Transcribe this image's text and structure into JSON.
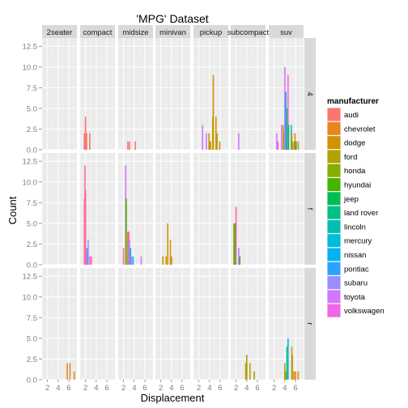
{
  "chart_data": {
    "type": "bar",
    "title": "'MPG' Dataset",
    "xlabel": "Displacement",
    "ylabel": "Count",
    "ylim": [
      0,
      13.5
    ],
    "y_ticks": [
      "0.0",
      "2.5",
      "5.0",
      "7.5",
      "10.0",
      "12.5"
    ],
    "xlim": [
      1,
      7.5
    ],
    "x_ticks": [
      "2",
      "4",
      "6"
    ],
    "col_facets": [
      "2seater",
      "compact",
      "midsize",
      "minivan",
      "pickup",
      "subcompact",
      "suv"
    ],
    "row_facets": [
      "4",
      "f",
      "r"
    ],
    "legend": {
      "title": "manufacturer",
      "position": "right",
      "entries": [
        {
          "name": "audi",
          "color": "#F8766D"
        },
        {
          "name": "chevrolet",
          "color": "#E7861B"
        },
        {
          "name": "dodge",
          "color": "#D09400"
        },
        {
          "name": "ford",
          "color": "#B2A100"
        },
        {
          "name": "honda",
          "color": "#89AC00"
        },
        {
          "name": "hyundai",
          "color": "#45B500"
        },
        {
          "name": "jeep",
          "color": "#00BC51"
        },
        {
          "name": "land rover",
          "color": "#00C087"
        },
        {
          "name": "lincoln",
          "color": "#00C0B2"
        },
        {
          "name": "mercury",
          "color": "#00BCD6"
        },
        {
          "name": "nissan",
          "color": "#00B3F2"
        },
        {
          "name": "pontiac",
          "color": "#29A3FF"
        },
        {
          "name": "subaru",
          "color": "#9C8DFF"
        },
        {
          "name": "toyota",
          "color": "#D277FF"
        },
        {
          "name": "volkswagen",
          "color": "#F166E8"
        }
      ]
    },
    "extra_colors": {
      "toyota_bar": "#FF61C9",
      "volkswagen_bar": "#FF65AC"
    },
    "grid": true,
    "background": "#EBEBEB",
    "bars": [
      {
        "col": 1,
        "row": 0,
        "x": 1.8,
        "y": 2,
        "color": "#F8766D"
      },
      {
        "col": 1,
        "row": 0,
        "x": 2.0,
        "y": 4,
        "color": "#F8766D"
      },
      {
        "col": 1,
        "row": 0,
        "x": 2.2,
        "y": 2,
        "color": "#F8766D"
      },
      {
        "col": 1,
        "row": 0,
        "x": 2.8,
        "y": 2,
        "color": "#F8766D"
      },
      {
        "col": 2,
        "row": 0,
        "x": 2.8,
        "y": 1,
        "color": "#F8766D"
      },
      {
        "col": 2,
        "row": 0,
        "x": 3.1,
        "y": 1,
        "color": "#F8766D"
      },
      {
        "col": 2,
        "row": 0,
        "x": 4.2,
        "y": 1,
        "color": "#F8766D"
      },
      {
        "col": 4,
        "row": 0,
        "x": 2.7,
        "y": 3,
        "color": "#D277FF"
      },
      {
        "col": 4,
        "row": 0,
        "x": 3.4,
        "y": 2,
        "color": "#D277FF"
      },
      {
        "col": 4,
        "row": 0,
        "x": 3.9,
        "y": 2,
        "color": "#D09400"
      },
      {
        "col": 4,
        "row": 0,
        "x": 4.0,
        "y": 1,
        "color": "#B2A100"
      },
      {
        "col": 4,
        "row": 0,
        "x": 4.2,
        "y": 1,
        "color": "#E7861B"
      },
      {
        "col": 4,
        "row": 0,
        "x": 4.6,
        "y": 4,
        "color": "#B2A100"
      },
      {
        "col": 4,
        "row": 0,
        "x": 4.7,
        "y": 9,
        "color": "#D09400"
      },
      {
        "col": 4,
        "row": 0,
        "x": 5.2,
        "y": 4,
        "color": "#D09400"
      },
      {
        "col": 4,
        "row": 0,
        "x": 5.4,
        "y": 2,
        "color": "#B2A100"
      },
      {
        "col": 4,
        "row": 0,
        "x": 5.9,
        "y": 1,
        "color": "#D09400"
      },
      {
        "col": 5,
        "row": 0,
        "x": 2.5,
        "y": 2,
        "color": "#D277FF"
      },
      {
        "col": 6,
        "row": 0,
        "x": 2.5,
        "y": 2,
        "color": "#D277FF"
      },
      {
        "col": 6,
        "row": 0,
        "x": 2.7,
        "y": 1,
        "color": "#FF61C9"
      },
      {
        "col": 6,
        "row": 0,
        "x": 3.4,
        "y": 3,
        "color": "#D277FF"
      },
      {
        "col": 6,
        "row": 0,
        "x": 3.7,
        "y": 3,
        "color": "#D09400"
      },
      {
        "col": 6,
        "row": 0,
        "x": 3.9,
        "y": 2,
        "color": "#B2A100"
      },
      {
        "col": 6,
        "row": 0,
        "x": 4.0,
        "y": 10,
        "color": "#D277FF"
      },
      {
        "col": 6,
        "row": 0,
        "x": 4.2,
        "y": 7,
        "color": "#00B3F2"
      },
      {
        "col": 6,
        "row": 0,
        "x": 4.4,
        "y": 5,
        "color": "#00C087"
      },
      {
        "col": 6,
        "row": 0,
        "x": 4.6,
        "y": 9,
        "color": "#FF61C9"
      },
      {
        "col": 6,
        "row": 0,
        "x": 4.7,
        "y": 3,
        "color": "#00BC51"
      },
      {
        "col": 6,
        "row": 0,
        "x": 5.2,
        "y": 3,
        "color": "#00BCD6"
      },
      {
        "col": 6,
        "row": 0,
        "x": 5.3,
        "y": 2,
        "color": "#E7861B"
      },
      {
        "col": 6,
        "row": 0,
        "x": 5.4,
        "y": 1,
        "color": "#B2A100"
      },
      {
        "col": 6,
        "row": 0,
        "x": 5.7,
        "y": 1,
        "color": "#D09400"
      },
      {
        "col": 6,
        "row": 0,
        "x": 5.9,
        "y": 2,
        "color": "#D09400"
      },
      {
        "col": 6,
        "row": 0,
        "x": 6.1,
        "y": 1,
        "color": "#00BC51"
      },
      {
        "col": 6,
        "row": 0,
        "x": 6.5,
        "y": 1,
        "color": "#D09400"
      },
      {
        "col": 1,
        "row": 1,
        "x": 1.8,
        "y": 8,
        "color": "#F8766D"
      },
      {
        "col": 1,
        "row": 1,
        "x": 1.9,
        "y": 12,
        "color": "#FF65AC"
      },
      {
        "col": 1,
        "row": 1,
        "x": 2.0,
        "y": 9,
        "color": "#FF65AC"
      },
      {
        "col": 1,
        "row": 1,
        "x": 2.2,
        "y": 2,
        "color": "#D277FF"
      },
      {
        "col": 1,
        "row": 1,
        "x": 2.4,
        "y": 2,
        "color": "#00B3F2"
      },
      {
        "col": 1,
        "row": 1,
        "x": 2.5,
        "y": 3,
        "color": "#9C8DFF"
      },
      {
        "col": 1,
        "row": 1,
        "x": 2.8,
        "y": 1,
        "color": "#FF65AC"
      },
      {
        "col": 1,
        "row": 1,
        "x": 3.1,
        "y": 1,
        "color": "#FF65AC"
      },
      {
        "col": 2,
        "row": 1,
        "x": 2.0,
        "y": 2,
        "color": "#F8766D"
      },
      {
        "col": 2,
        "row": 1,
        "x": 2.4,
        "y": 12,
        "color": "#D277FF"
      },
      {
        "col": 2,
        "row": 1,
        "x": 2.5,
        "y": 8,
        "color": "#45B500"
      },
      {
        "col": 2,
        "row": 1,
        "x": 2.8,
        "y": 4,
        "color": "#E7861B"
      },
      {
        "col": 2,
        "row": 1,
        "x": 3.0,
        "y": 4,
        "color": "#FF61C9"
      },
      {
        "col": 2,
        "row": 1,
        "x": 3.1,
        "y": 3,
        "color": "#9C8DFF"
      },
      {
        "col": 2,
        "row": 1,
        "x": 3.3,
        "y": 2,
        "color": "#00B3F2"
      },
      {
        "col": 2,
        "row": 1,
        "x": 3.5,
        "y": 1,
        "color": "#D277FF"
      },
      {
        "col": 2,
        "row": 1,
        "x": 3.8,
        "y": 1,
        "color": "#29A3FF"
      },
      {
        "col": 2,
        "row": 1,
        "x": 5.3,
        "y": 1,
        "color": "#D277FF"
      },
      {
        "col": 3,
        "row": 1,
        "x": 2.4,
        "y": 1,
        "color": "#D09400"
      },
      {
        "col": 3,
        "row": 1,
        "x": 3.0,
        "y": 1,
        "color": "#D09400"
      },
      {
        "col": 3,
        "row": 1,
        "x": 3.3,
        "y": 5,
        "color": "#D09400"
      },
      {
        "col": 3,
        "row": 1,
        "x": 3.8,
        "y": 3,
        "color": "#D09400"
      },
      {
        "col": 3,
        "row": 1,
        "x": 4.0,
        "y": 1,
        "color": "#D09400"
      },
      {
        "col": 5,
        "row": 1,
        "x": 1.6,
        "y": 5,
        "color": "#89AC00"
      },
      {
        "col": 5,
        "row": 1,
        "x": 1.8,
        "y": 5,
        "color": "#45B500"
      },
      {
        "col": 5,
        "row": 1,
        "x": 2.0,
        "y": 7,
        "color": "#FF65AC"
      },
      {
        "col": 5,
        "row": 1,
        "x": 2.5,
        "y": 2,
        "color": "#9C8DFF"
      },
      {
        "col": 5,
        "row": 1,
        "x": 2.7,
        "y": 1,
        "color": "#45B500"
      },
      {
        "col": 0,
        "row": 2,
        "x": 5.7,
        "y": 2,
        "color": "#E7861B"
      },
      {
        "col": 0,
        "row": 2,
        "x": 6.2,
        "y": 2,
        "color": "#E7861B"
      },
      {
        "col": 0,
        "row": 2,
        "x": 7.0,
        "y": 1,
        "color": "#E7861B"
      },
      {
        "col": 5,
        "row": 2,
        "x": 3.8,
        "y": 2,
        "color": "#B2A100"
      },
      {
        "col": 5,
        "row": 2,
        "x": 4.0,
        "y": 3,
        "color": "#B2A100"
      },
      {
        "col": 5,
        "row": 2,
        "x": 4.6,
        "y": 2,
        "color": "#B2A100"
      },
      {
        "col": 5,
        "row": 2,
        "x": 5.4,
        "y": 1,
        "color": "#B2A100"
      },
      {
        "col": 6,
        "row": 2,
        "x": 4.0,
        "y": 2,
        "color": "#B2A100"
      },
      {
        "col": 6,
        "row": 2,
        "x": 4.2,
        "y": 1,
        "color": "#B2A100"
      },
      {
        "col": 6,
        "row": 2,
        "x": 4.4,
        "y": 4,
        "color": "#00C087"
      },
      {
        "col": 6,
        "row": 2,
        "x": 4.6,
        "y": 5,
        "color": "#00BCD6"
      },
      {
        "col": 6,
        "row": 2,
        "x": 5.3,
        "y": 4,
        "color": "#E7861B"
      },
      {
        "col": 6,
        "row": 2,
        "x": 5.4,
        "y": 3,
        "color": "#B2A100"
      },
      {
        "col": 6,
        "row": 2,
        "x": 5.7,
        "y": 1,
        "color": "#E7861B"
      },
      {
        "col": 6,
        "row": 2,
        "x": 6.0,
        "y": 1,
        "color": "#E7861B"
      },
      {
        "col": 6,
        "row": 2,
        "x": 6.5,
        "y": 1,
        "color": "#E7861B"
      }
    ]
  }
}
